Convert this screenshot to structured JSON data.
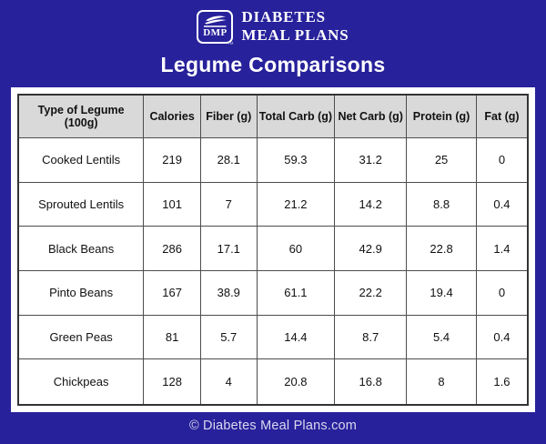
{
  "colors": {
    "background": "#27219b",
    "panel_bg": "#ffffff",
    "header_cell_bg": "#d9d9d9",
    "table_border": "#333333",
    "cell_text": "#111111",
    "title_text": "#ffffff",
    "footer_text": "#dbd9ef"
  },
  "brand": {
    "logo_monogram": "DMP",
    "logo_trademark": "TM",
    "logo_icon": "dish-swoosh-icon",
    "name_line1": "DIABETES",
    "name_line2": "MEAL PLANS"
  },
  "title": "Legume Comparisons",
  "footer": {
    "credit": "© Diabetes Meal Plans.com"
  },
  "chart_data": {
    "type": "table",
    "title": "Legume Comparisons",
    "columns": [
      "Type of Legume (100g)",
      "Calories",
      "Fiber (g)",
      "Total Carb (g)",
      "Net Carb (g)",
      "Protein (g)",
      "Fat (g)"
    ],
    "rows": [
      [
        "Cooked Lentils",
        "219",
        "28.1",
        "59.3",
        "31.2",
        "25",
        "0"
      ],
      [
        "Sprouted Lentils",
        "101",
        "7",
        "21.2",
        "14.2",
        "8.8",
        "0.4"
      ],
      [
        "Black Beans",
        "286",
        "17.1",
        "60",
        "42.9",
        "22.8",
        "1.4"
      ],
      [
        "Pinto Beans",
        "167",
        "38.9",
        "61.1",
        "22.2",
        "19.4",
        "0"
      ],
      [
        "Green Peas",
        "81",
        "5.7",
        "14.4",
        "8.7",
        "5.4",
        "0.4"
      ],
      [
        "Chickpeas",
        "128",
        "4",
        "20.8",
        "16.8",
        "8",
        "1.6"
      ]
    ]
  }
}
